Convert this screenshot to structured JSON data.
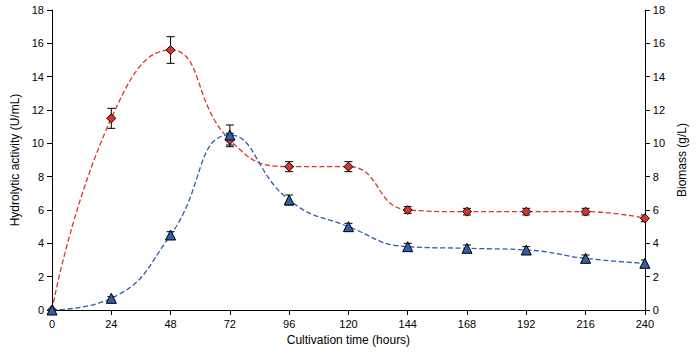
{
  "chart_data": {
    "type": "line",
    "x_label": "Cultivation time (hours)",
    "y_label": "Hydrolytic activity (U/mL)",
    "y2_label": "Biomass (g/L)",
    "xlim": [
      0,
      240
    ],
    "xticks": [
      0,
      24,
      48,
      72,
      96,
      120,
      144,
      168,
      192,
      216,
      240
    ],
    "ylim": [
      0,
      18
    ],
    "yticks": [
      0,
      2,
      4,
      6,
      8,
      10,
      12,
      14,
      16,
      18
    ],
    "y2lim": [
      0,
      18
    ],
    "y2ticks": [
      0,
      2,
      4,
      6,
      8,
      10,
      12,
      14,
      16,
      18
    ],
    "grid": false,
    "x": [
      0,
      24,
      48,
      72,
      96,
      120,
      144,
      168,
      192,
      216,
      240
    ],
    "series": [
      {
        "color": "#d9362b",
        "marker": "diamond",
        "line_style": "dashed",
        "values": [
          0,
          11.5,
          15.6,
          10.2,
          8.6,
          8.6,
          6.0,
          5.9,
          5.9,
          5.9,
          5.5
        ],
        "errors": [
          0,
          0.6,
          0.8,
          0.4,
          0.3,
          0.3,
          0.2,
          0.2,
          0.2,
          0.2,
          0.2
        ]
      },
      {
        "color": "#2e5fa8",
        "marker": "triangle",
        "line_style": "dashed",
        "axis": "y2",
        "values": [
          0,
          0.7,
          4.5,
          10.5,
          6.6,
          5.0,
          3.8,
          3.7,
          3.6,
          3.1,
          2.8
        ],
        "errors": [
          0,
          0.1,
          0.2,
          0.6,
          0.3,
          0.2,
          0.2,
          0.2,
          0.2,
          0.2,
          0.2
        ]
      }
    ]
  }
}
